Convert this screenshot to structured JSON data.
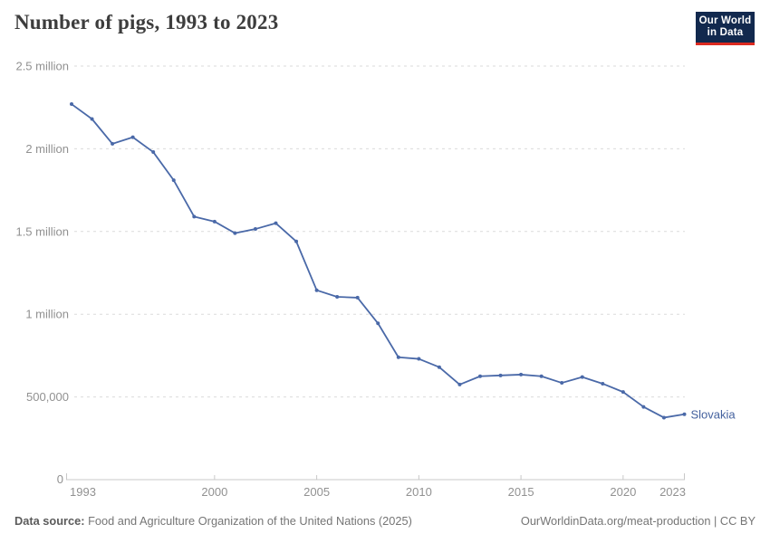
{
  "header": {
    "title": "Number of pigs, 1993 to 2023",
    "logo": {
      "line1": "Our World",
      "line2": "in Data"
    }
  },
  "footer": {
    "source_label": "Data source:",
    "source_text": " Food and Agriculture Organization of the United Nations (2025)",
    "citation": "OurWorldinData.org/meat-production | CC BY"
  },
  "colors": {
    "line": "#4a69a8",
    "series_label": "#44619e",
    "grid": "#dbdbdb",
    "axis": "#c8c8c8",
    "tick_label": "#919191",
    "title": "#3d3d3d",
    "logo_bg": "#12294e",
    "logo_red": "#dc2a20"
  },
  "chart_data": {
    "type": "line",
    "title": "Number of pigs, 1993 to 2023",
    "xlabel": "",
    "ylabel": "",
    "xlim": [
      1993,
      2023
    ],
    "ylim": [
      0,
      2500000
    ],
    "grid": "horizontal-dashed",
    "legend_position": "end-of-line-label",
    "x_ticks": [
      1993,
      2000,
      2005,
      2010,
      2015,
      2020,
      2023
    ],
    "y_ticks": [
      {
        "value": 0,
        "label": "0"
      },
      {
        "value": 500000,
        "label": "500,000"
      },
      {
        "value": 1000000,
        "label": "1 million"
      },
      {
        "value": 1500000,
        "label": "1.5 million"
      },
      {
        "value": 2000000,
        "label": "2 million"
      },
      {
        "value": 2500000,
        "label": "2.5 million"
      }
    ],
    "series": [
      {
        "name": "Slovakia",
        "x": [
          1993,
          1994,
          1995,
          1996,
          1997,
          1998,
          1999,
          2000,
          2001,
          2002,
          2003,
          2004,
          2005,
          2006,
          2007,
          2008,
          2009,
          2010,
          2011,
          2012,
          2013,
          2014,
          2015,
          2016,
          2017,
          2018,
          2019,
          2020,
          2021,
          2022,
          2023
        ],
        "values": [
          2270000,
          2180000,
          2030000,
          2070000,
          1980000,
          1810000,
          1590000,
          1560000,
          1490000,
          1515000,
          1550000,
          1440000,
          1145000,
          1105000,
          1100000,
          945000,
          740000,
          730000,
          680000,
          575000,
          625000,
          630000,
          635000,
          625000,
          585000,
          620000,
          580000,
          530000,
          440000,
          375000,
          395000
        ]
      }
    ]
  }
}
